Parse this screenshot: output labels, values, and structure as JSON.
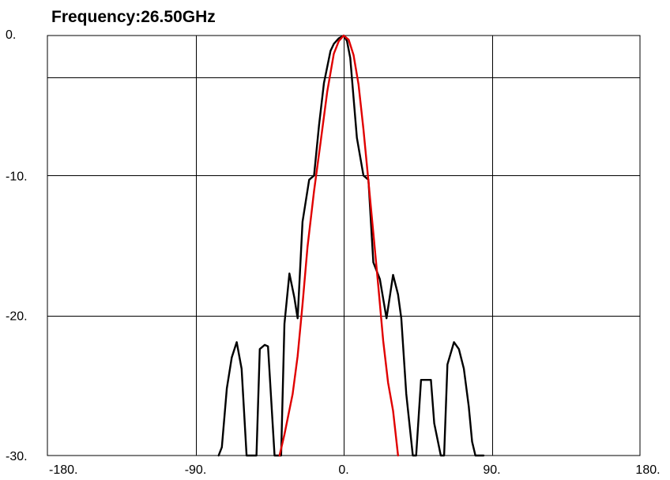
{
  "chart_data": {
    "type": "line",
    "title": "Frequency:26.50GHz",
    "xlabel": "",
    "ylabel": "",
    "xlim": [
      -180,
      180
    ],
    "ylim": [
      -30,
      0
    ],
    "grid": true,
    "x_ticks": [
      "-180.",
      "-90.",
      "0.",
      "90.",
      "180."
    ],
    "y_ticks": [
      "0.",
      "-10.",
      "-20.",
      "-30."
    ],
    "x_tick_values": [
      -180,
      -90,
      0,
      90,
      180
    ],
    "y_tick_values": [
      0,
      -10,
      -20,
      -30
    ],
    "y_gridlines": [
      0,
      -3,
      -10,
      -20,
      -30
    ],
    "series": [
      {
        "color": "#000000",
        "points": [
          [
            -76,
            -30.0
          ],
          [
            -74,
            -29.4
          ],
          [
            -71,
            -25.2
          ],
          [
            -68,
            -23.0
          ],
          [
            -65,
            -21.9
          ],
          [
            -62,
            -23.8
          ],
          [
            -59,
            -30.0
          ],
          [
            -53,
            -30.0
          ],
          [
            -51,
            -22.4
          ],
          [
            -48,
            -22.1
          ],
          [
            -46,
            -22.2
          ],
          [
            -42,
            -30.0
          ],
          [
            -38,
            -30.0
          ],
          [
            -36,
            -20.6
          ],
          [
            -33,
            -17.0
          ],
          [
            -30,
            -18.7
          ],
          [
            -28,
            -20.2
          ],
          [
            -25,
            -13.3
          ],
          [
            -21,
            -10.3
          ],
          [
            -18,
            -10.0
          ],
          [
            -15,
            -6.4
          ],
          [
            -12,
            -3.4
          ],
          [
            -8,
            -1.1
          ],
          [
            -6,
            -0.6
          ],
          [
            -3,
            -0.2
          ],
          [
            0,
            0.0
          ],
          [
            2,
            -0.4
          ],
          [
            4,
            -1.6
          ],
          [
            8,
            -7.3
          ],
          [
            12,
            -10.0
          ],
          [
            15,
            -10.3
          ],
          [
            18,
            -16.2
          ],
          [
            22,
            -17.4
          ],
          [
            26,
            -20.2
          ],
          [
            30,
            -17.1
          ],
          [
            33,
            -18.5
          ],
          [
            35,
            -20.2
          ],
          [
            38,
            -25.6
          ],
          [
            42,
            -30.0
          ],
          [
            44,
            -30.0
          ],
          [
            47,
            -24.6
          ],
          [
            53,
            -24.6
          ],
          [
            55,
            -27.7
          ],
          [
            59,
            -30.0
          ],
          [
            61,
            -30.0
          ],
          [
            63,
            -23.5
          ],
          [
            67,
            -21.9
          ],
          [
            70,
            -22.4
          ],
          [
            73,
            -23.8
          ],
          [
            76,
            -26.5
          ],
          [
            78,
            -29.0
          ],
          [
            80,
            -30.0
          ],
          [
            85,
            -30.0
          ]
        ]
      },
      {
        "color": "#e00000",
        "points": [
          [
            -39,
            -30.0
          ],
          [
            -36,
            -28.5
          ],
          [
            -31,
            -25.6
          ],
          [
            -28,
            -22.9
          ],
          [
            -25,
            -19.2
          ],
          [
            -22,
            -15.1
          ],
          [
            -18,
            -11.1
          ],
          [
            -14,
            -7.6
          ],
          [
            -10,
            -4.0
          ],
          [
            -6,
            -1.3
          ],
          [
            -3,
            -0.4
          ],
          [
            0,
            0.0
          ],
          [
            3,
            -0.3
          ],
          [
            6,
            -1.4
          ],
          [
            9,
            -3.5
          ],
          [
            12,
            -6.7
          ],
          [
            15,
            -10.4
          ],
          [
            18,
            -14.1
          ],
          [
            21,
            -17.9
          ],
          [
            24,
            -21.8
          ],
          [
            27,
            -24.8
          ],
          [
            30,
            -26.8
          ],
          [
            33,
            -30.0
          ]
        ]
      }
    ]
  }
}
